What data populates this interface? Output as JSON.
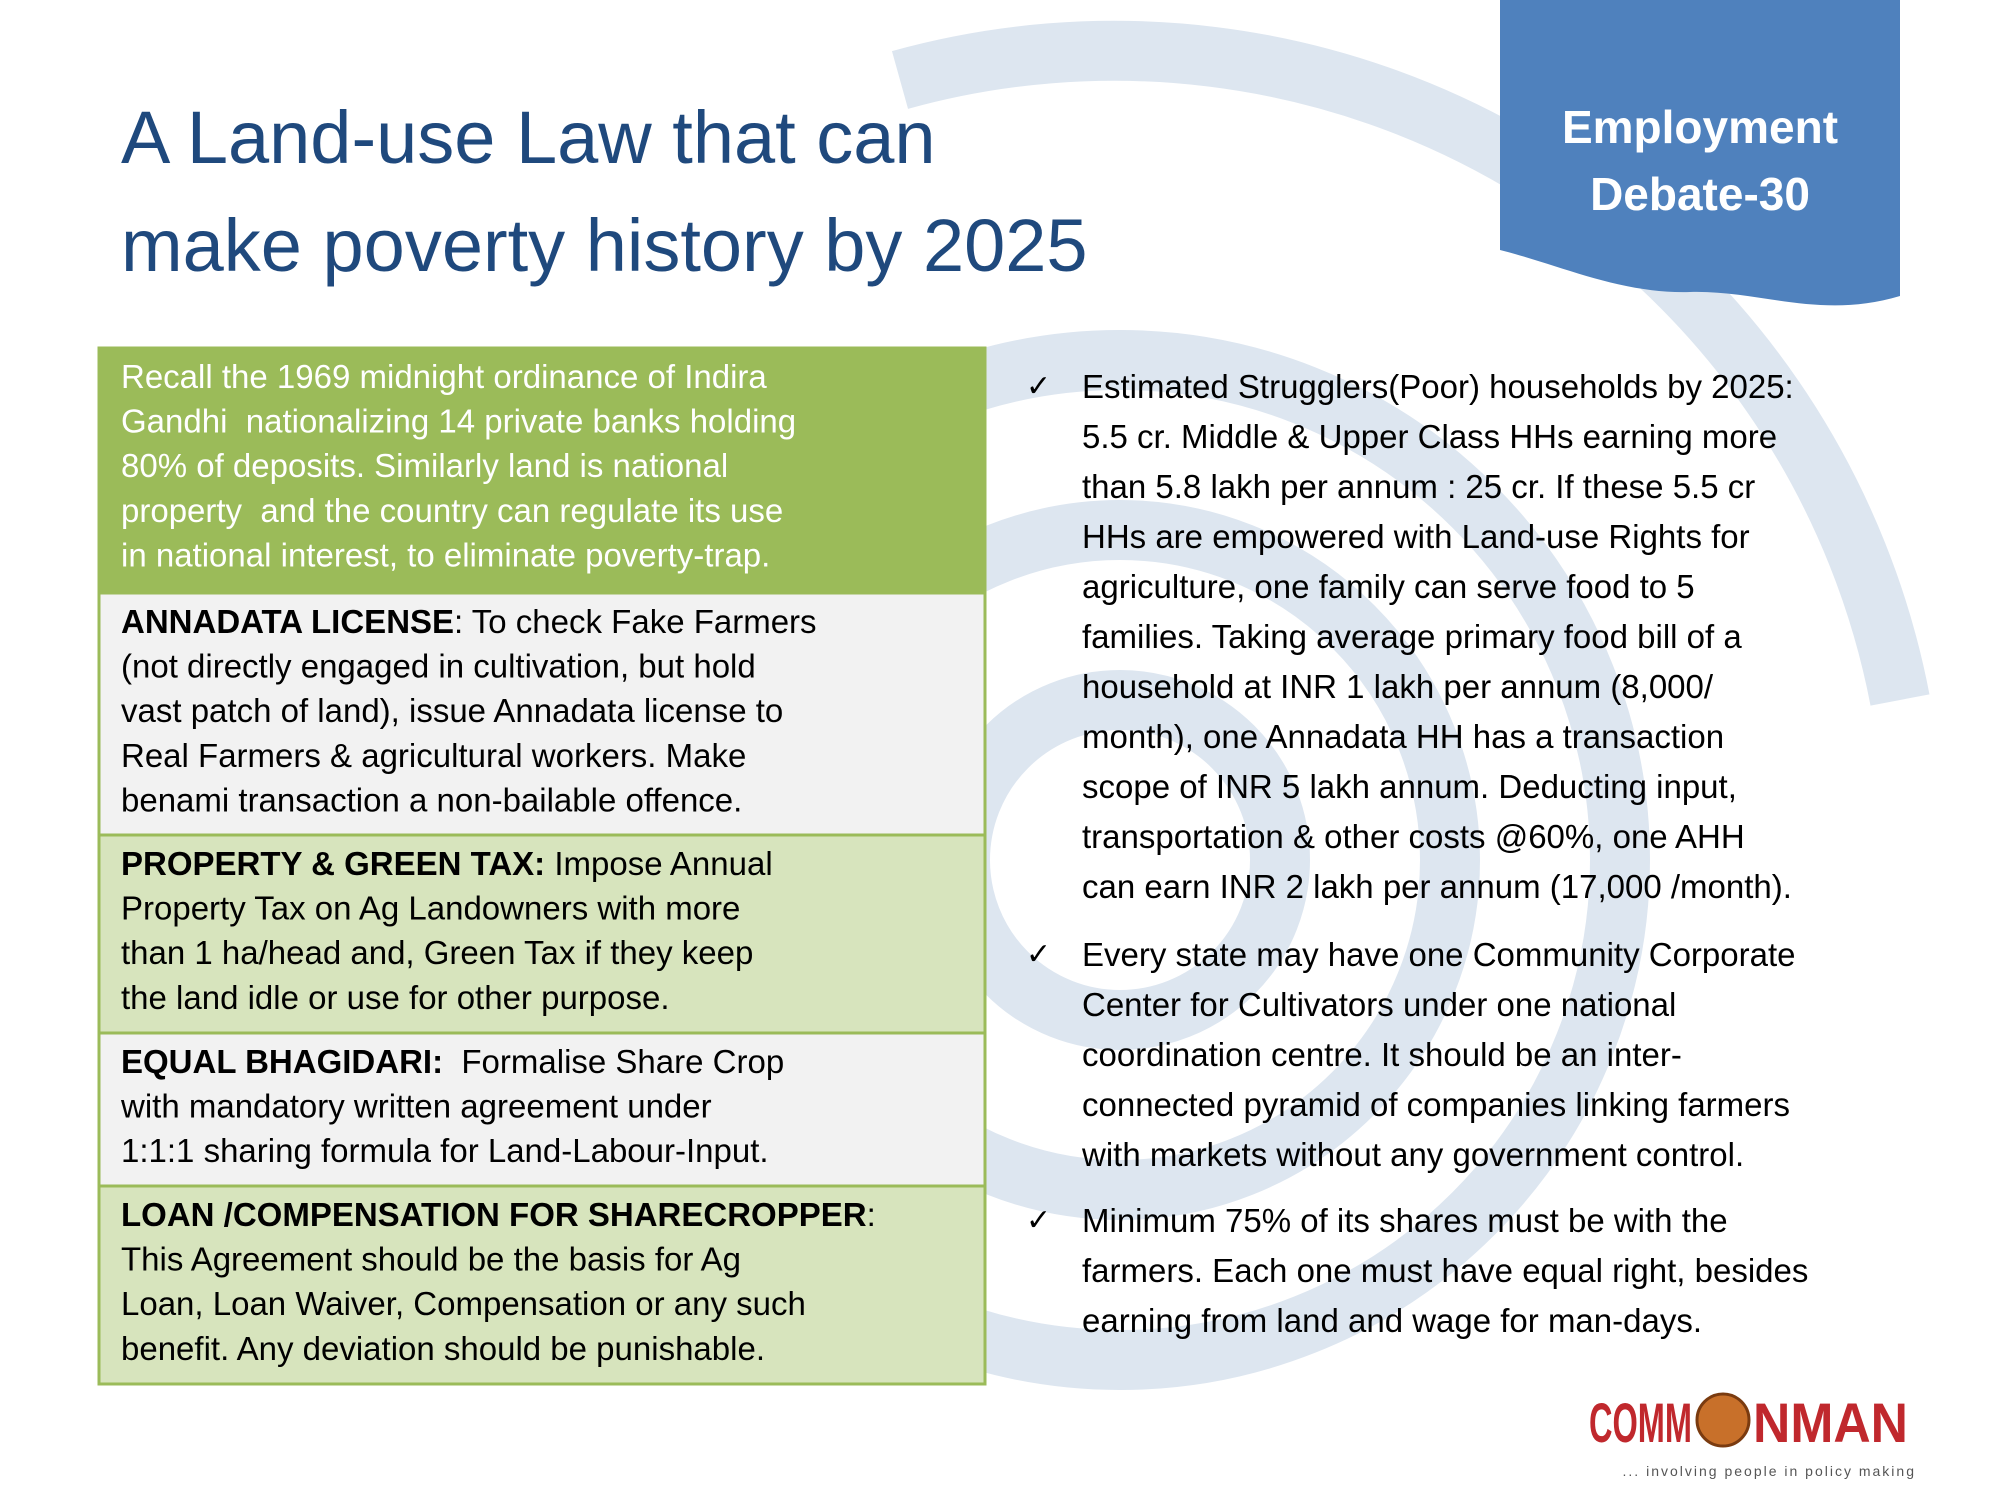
{
  "header": {
    "title_lines": [
      "A Land-use Law that can",
      "make poverty history by 2025"
    ],
    "badge_lines": [
      "Employment",
      "Debate-30"
    ]
  },
  "left_boxes": [
    {
      "lines": [
        "Recall the 1969 midnight ordinance of Indira",
        "Gandhi  nationalizing 14 private banks holding",
        "80% of deposits. Similarly land is national",
        "property  and the country can regulate its use",
        "in national interest, to eliminate poverty-trap."
      ]
    },
    {
      "heading": "ANNADATA LICENSE",
      "lines": [
        ": To check Fake Farmers",
        "(not directly engaged in cultivation, but hold",
        "vast patch of land), issue Annadata license to",
        "Real Farmers & agricultural workers. Make",
        "benami transaction a non-bailable offence."
      ]
    },
    {
      "heading": "PROPERTY & GREEN TAX:",
      "lines": [
        " Impose Annual",
        "Property Tax on Ag Landowners with more",
        "than 1 ha/head and, Green Tax if they keep",
        "the land idle or use for other purpose."
      ]
    },
    {
      "heading": "EQUAL BHAGIDARI:",
      "lines": [
        "  Formalise Share Crop",
        "with mandatory written agreement under",
        "1:1:1 sharing formula for Land-Labour-Input."
      ]
    },
    {
      "heading": "LOAN /COMPENSATION FOR SHARECROPPER",
      "lines": [
        ":",
        "This Agreement should be the basis for Ag",
        "Loan, Loan Waiver, Compensation or any such",
        "benefit. Any deviation should be punishable."
      ]
    }
  ],
  "bullets": [
    {
      "lines": [
        "Estimated Strugglers(Poor) households by 2025:",
        "5.5 cr. Middle & Upper Class HHs earning more",
        "than 5.8 lakh per annum : 25 cr. If  these 5.5 cr",
        "HHs are empowered with  Land-use Rights for",
        "agriculture, one family can serve food to 5",
        "families. Taking average primary food bill of a",
        "household at INR 1 lakh per annum (8,000/",
        "month),  one Annadata HH has a transaction",
        "scope of INR 5 lakh annum. Deducting input,",
        "transportation & other costs @60%,  one AHH",
        "can earn INR 2 lakh per annum (17,000 /month)."
      ]
    },
    {
      "lines": [
        "Every state may have one Community Corporate",
        "Center  for Cultivators  under one national",
        "coordination  centre. It should be an inter-",
        "connected pyramid of companies linking farmers",
        "with markets without any government control."
      ]
    },
    {
      "lines": [
        "Minimum 75% of its shares must be with the",
        "farmers. Each one must have equal right, besides",
        "earning from land and wage for man-days."
      ]
    }
  ],
  "logo": {
    "left": "COMM",
    "right": "NMAN",
    "tagline": "... involving people in policy making"
  }
}
